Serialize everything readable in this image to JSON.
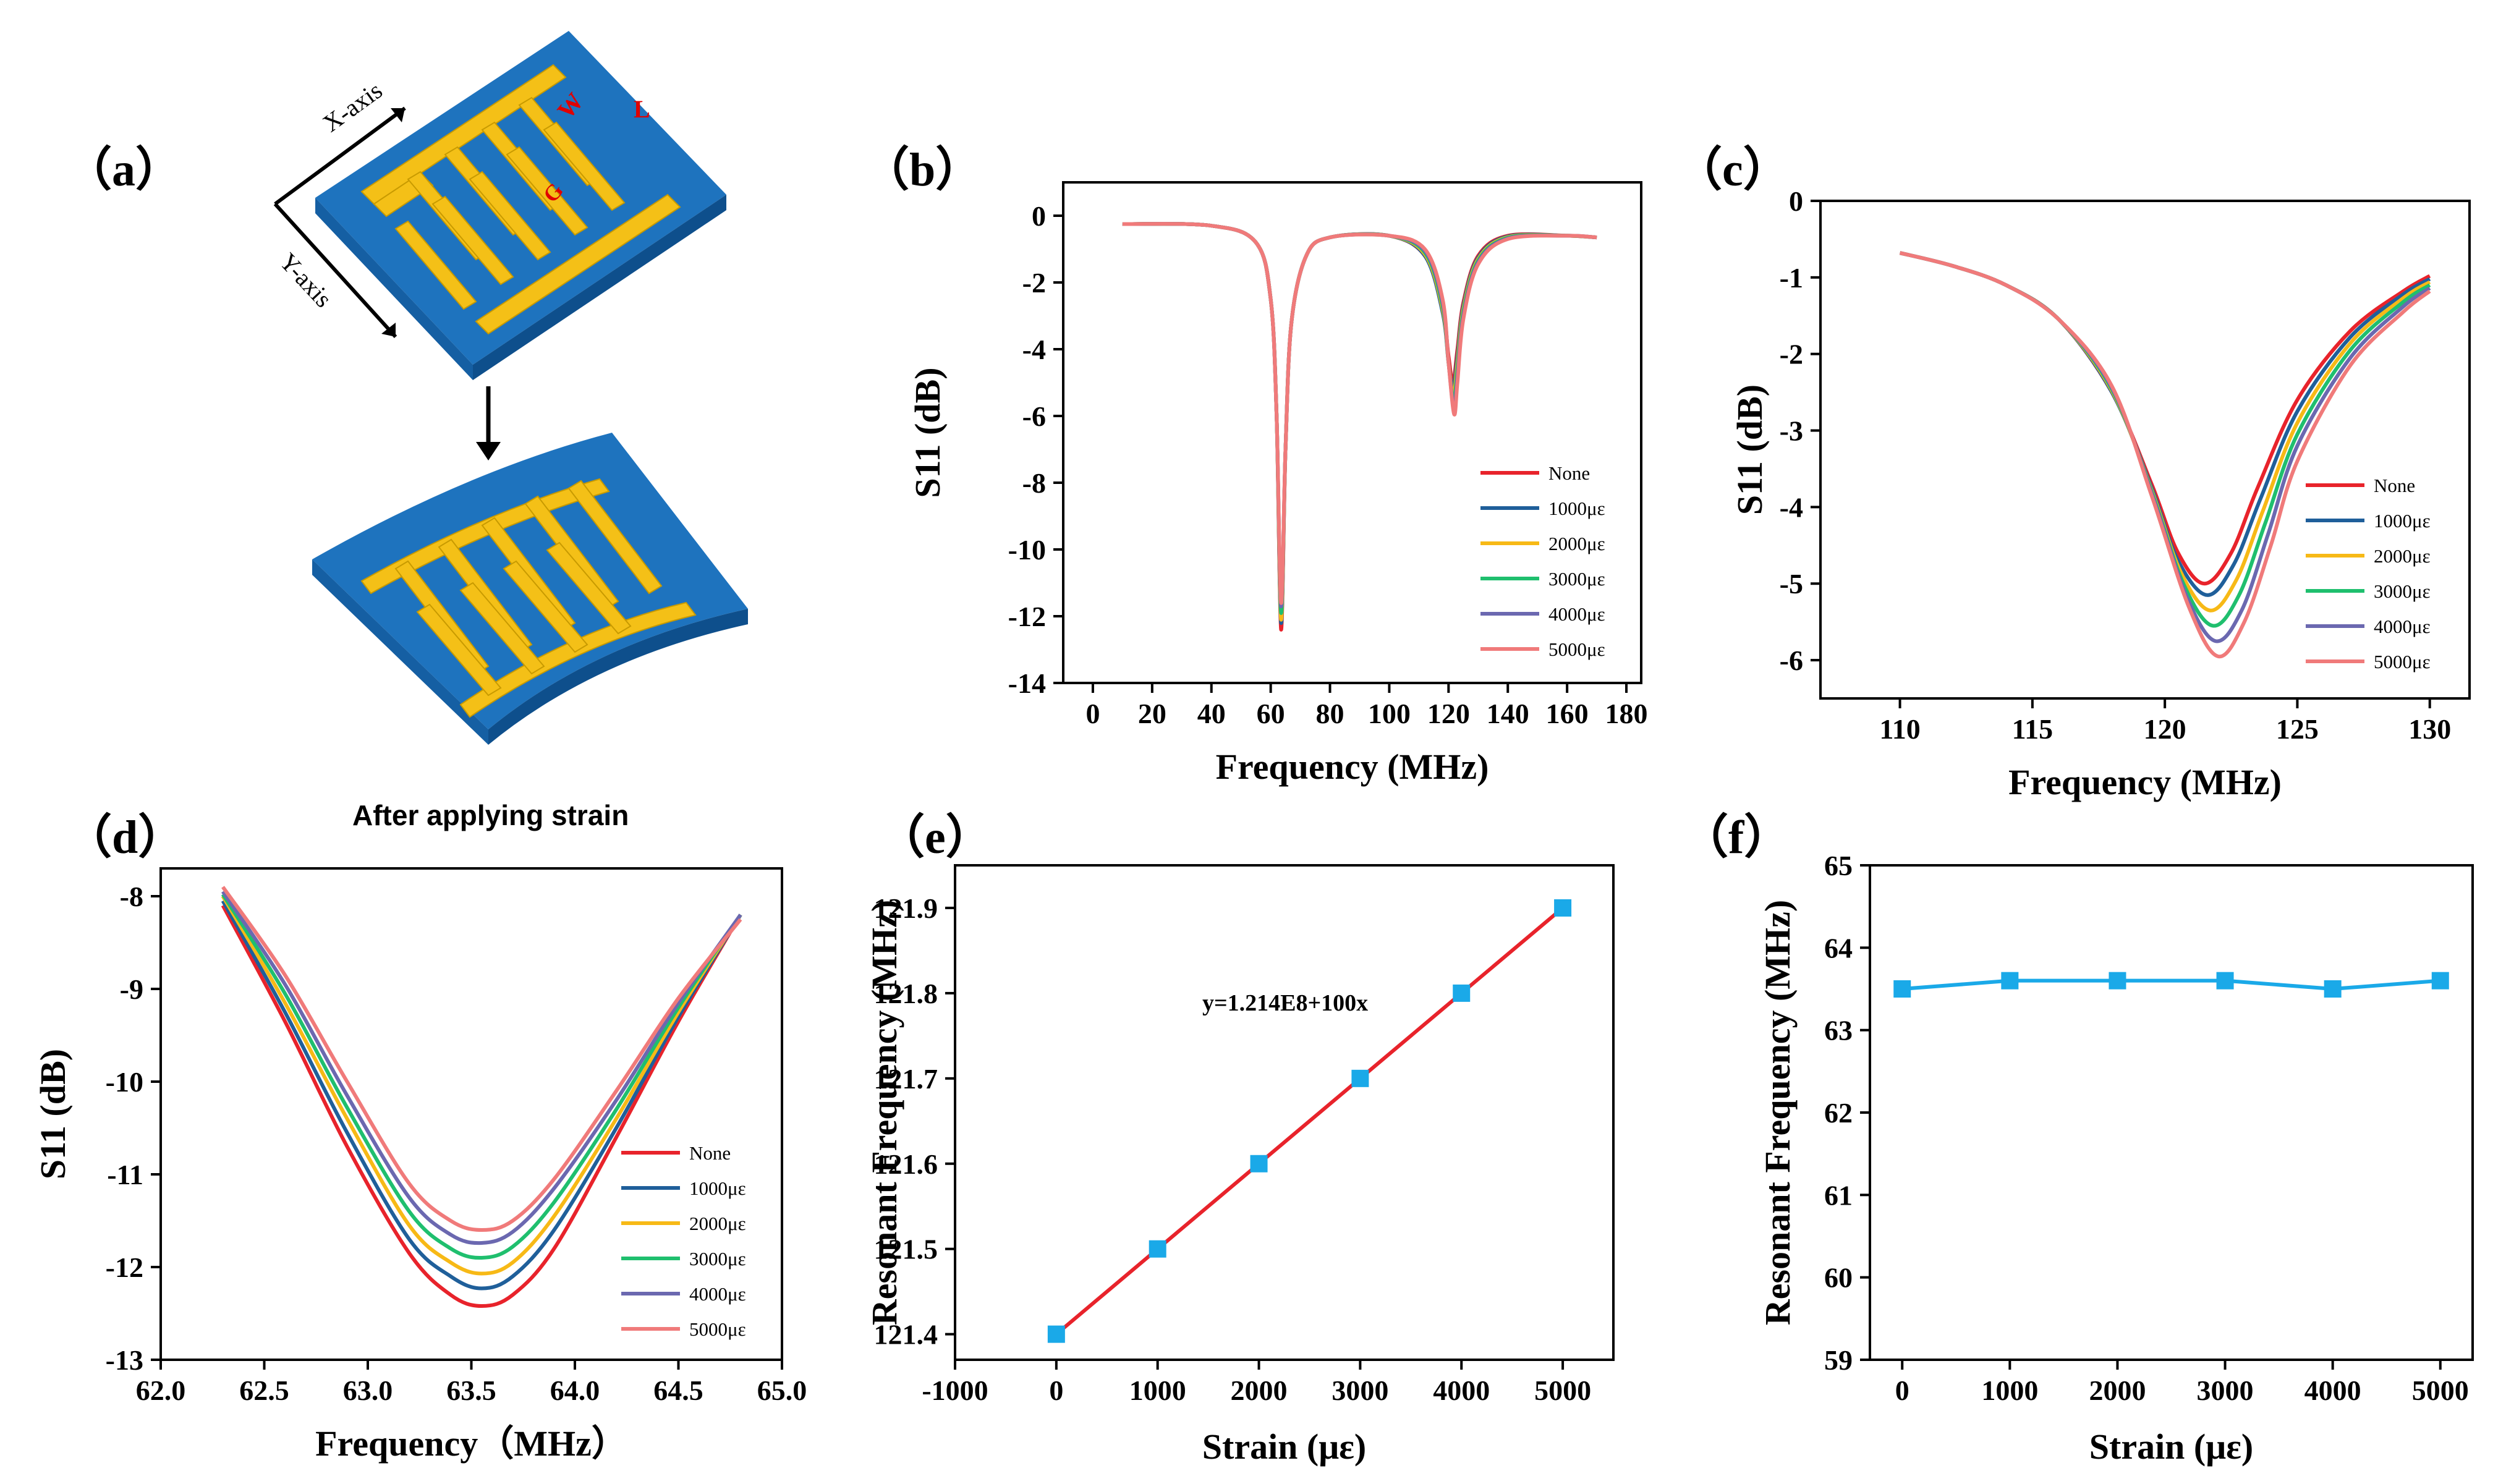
{
  "panels": {
    "a": {
      "label": "（a）",
      "x_axis": "X-axis",
      "y_axis": "Y-axis",
      "caption": "After applying strain",
      "marks": [
        "W",
        "L",
        "G"
      ]
    },
    "b": {
      "label": "（b）"
    },
    "c": {
      "label": "（c）"
    },
    "d": {
      "label": "（d）"
    },
    "e": {
      "label": "（e）",
      "annotation": "y=1.214E8+100x"
    },
    "f": {
      "label": "（f）"
    }
  },
  "colors": {
    "None": "#e8232b",
    "1000με": "#1f5f9a",
    "2000με": "#f7b916",
    "3000με": "#1fbf6e",
    "4000με": "#6b68b0",
    "5000με": "#f07a7a",
    "marker": "#1aa9e8",
    "fit": "#e8232b",
    "substrate": "#1e73be",
    "electrode": "#f4c017"
  },
  "chart_data": [
    {
      "id": "b",
      "type": "line",
      "xlabel": "Frequency (MHz)",
      "ylabel": "S11 (dB)",
      "xlim": [
        -10,
        185
      ],
      "ylim": [
        -14,
        1
      ],
      "xticks": [
        0,
        20,
        40,
        60,
        80,
        100,
        120,
        140,
        160,
        180
      ],
      "yticks": [
        0,
        -2,
        -4,
        -6,
        -8,
        -10,
        -12,
        -14
      ],
      "series": [
        {
          "name": "None",
          "x": [
            10,
            40,
            55,
            60,
            62,
            63.5,
            65,
            67,
            72,
            80,
            100,
            112,
            118,
            120,
            121.5,
            123,
            125,
            130,
            140,
            160,
            170
          ],
          "y": [
            -0.25,
            -0.3,
            -0.8,
            -2.5,
            -6,
            -12.4,
            -7,
            -3.2,
            -1.2,
            -0.65,
            -0.6,
            -1.2,
            -2.8,
            -4.2,
            -5.0,
            -4.0,
            -2.6,
            -1.2,
            -0.6,
            -0.6,
            -0.65
          ]
        },
        {
          "name": "1000με",
          "x": [
            10,
            40,
            55,
            60,
            62,
            63.5,
            65,
            67,
            72,
            80,
            100,
            112,
            118,
            120,
            121.5,
            123,
            125,
            130,
            140,
            160,
            170
          ],
          "y": [
            -0.25,
            -0.3,
            -0.8,
            -2.5,
            -6,
            -12.2,
            -7,
            -3.2,
            -1.2,
            -0.65,
            -0.6,
            -1.2,
            -2.9,
            -4.4,
            -5.2,
            -4.2,
            -2.7,
            -1.25,
            -0.62,
            -0.6,
            -0.65
          ]
        },
        {
          "name": "2000με",
          "x": [
            10,
            40,
            55,
            60,
            62,
            63.5,
            65,
            67,
            72,
            80,
            100,
            112,
            118,
            120,
            121.6,
            123,
            125,
            130,
            140,
            160,
            170
          ],
          "y": [
            -0.25,
            -0.3,
            -0.8,
            -2.5,
            -6,
            -12.1,
            -7,
            -3.2,
            -1.2,
            -0.65,
            -0.6,
            -1.15,
            -2.8,
            -4.4,
            -5.4,
            -4.4,
            -2.8,
            -1.3,
            -0.64,
            -0.6,
            -0.65
          ]
        },
        {
          "name": "3000με",
          "x": [
            10,
            40,
            55,
            60,
            62,
            63.5,
            65,
            67,
            72,
            80,
            100,
            112,
            118,
            120,
            121.7,
            123,
            125,
            130,
            140,
            160,
            170
          ],
          "y": [
            -0.25,
            -0.3,
            -0.8,
            -2.5,
            -6,
            -11.9,
            -7,
            -3.2,
            -1.2,
            -0.65,
            -0.6,
            -1.1,
            -2.7,
            -4.4,
            -5.6,
            -4.6,
            -2.9,
            -1.35,
            -0.66,
            -0.6,
            -0.65
          ]
        },
        {
          "name": "4000με",
          "x": [
            10,
            40,
            55,
            60,
            62,
            63.5,
            65,
            67,
            72,
            80,
            100,
            112,
            118,
            120,
            121.8,
            123,
            125,
            130,
            140,
            160,
            170
          ],
          "y": [
            -0.25,
            -0.3,
            -0.8,
            -2.5,
            -6,
            -11.7,
            -7,
            -3.2,
            -1.2,
            -0.65,
            -0.6,
            -1.05,
            -2.6,
            -4.4,
            -5.8,
            -4.8,
            -3.0,
            -1.4,
            -0.68,
            -0.6,
            -0.65
          ]
        },
        {
          "name": "5000με",
          "x": [
            10,
            40,
            55,
            60,
            62,
            63.5,
            65,
            67,
            72,
            80,
            100,
            112,
            118,
            120,
            121.9,
            123,
            125,
            130,
            140,
            160,
            170
          ],
          "y": [
            -0.25,
            -0.3,
            -0.8,
            -2.5,
            -6,
            -11.6,
            -7,
            -3.2,
            -1.2,
            -0.65,
            -0.6,
            -1.0,
            -2.5,
            -4.4,
            -5.95,
            -5.0,
            -3.1,
            -1.45,
            -0.7,
            -0.6,
            -0.65
          ]
        }
      ]
    },
    {
      "id": "c",
      "type": "line",
      "xlabel": "Frequency (MHz)",
      "ylabel": "S11 (dB)",
      "xlim": [
        107,
        131.5
      ],
      "ylim": [
        -6.5,
        0
      ],
      "xticks": [
        110,
        115,
        120,
        125,
        130
      ],
      "yticks": [
        0,
        -1,
        -2,
        -3,
        -4,
        -5,
        -6
      ],
      "series": [
        {
          "name": "None",
          "x": [
            110,
            112,
            114,
            116,
            118,
            119.5,
            120.5,
            121.5,
            122.5,
            123.5,
            125,
            127,
            129,
            130
          ],
          "y": [
            -0.68,
            -0.85,
            -1.1,
            -1.55,
            -2.5,
            -3.7,
            -4.6,
            -5.0,
            -4.6,
            -3.75,
            -2.6,
            -1.7,
            -1.18,
            -0.98
          ]
        },
        {
          "name": "1000με",
          "x": [
            110,
            112,
            114,
            116,
            118,
            119.5,
            120.5,
            121.6,
            122.6,
            123.6,
            125,
            127,
            129,
            130
          ],
          "y": [
            -0.68,
            -0.85,
            -1.1,
            -1.55,
            -2.5,
            -3.75,
            -4.7,
            -5.15,
            -4.75,
            -3.9,
            -2.75,
            -1.78,
            -1.22,
            -1.02
          ]
        },
        {
          "name": "2000με",
          "x": [
            110,
            112,
            114,
            116,
            118,
            119.5,
            120.6,
            121.7,
            122.7,
            123.7,
            125,
            127,
            129,
            130
          ],
          "y": [
            -0.68,
            -0.85,
            -1.1,
            -1.55,
            -2.48,
            -3.78,
            -4.85,
            -5.35,
            -4.95,
            -4.05,
            -2.9,
            -1.86,
            -1.27,
            -1.06
          ]
        },
        {
          "name": "3000με",
          "x": [
            110,
            112,
            114,
            116,
            118,
            119.5,
            120.7,
            121.8,
            122.8,
            123.8,
            125,
            127,
            129,
            130
          ],
          "y": [
            -0.68,
            -0.85,
            -1.1,
            -1.55,
            -2.46,
            -3.8,
            -5.0,
            -5.55,
            -5.15,
            -4.2,
            -3.05,
            -1.95,
            -1.32,
            -1.1
          ]
        },
        {
          "name": "4000με",
          "x": [
            110,
            112,
            114,
            116,
            118,
            119.5,
            120.8,
            121.9,
            122.9,
            123.9,
            125,
            127,
            129,
            130
          ],
          "y": [
            -0.68,
            -0.85,
            -1.1,
            -1.55,
            -2.44,
            -3.82,
            -5.15,
            -5.75,
            -5.35,
            -4.35,
            -3.2,
            -2.05,
            -1.38,
            -1.14
          ]
        },
        {
          "name": "5000με",
          "x": [
            110,
            112,
            114,
            116,
            118,
            119.5,
            120.9,
            122.0,
            123.0,
            124.0,
            125,
            127,
            129,
            130
          ],
          "y": [
            -0.68,
            -0.85,
            -1.1,
            -1.55,
            -2.42,
            -3.85,
            -5.3,
            -5.95,
            -5.5,
            -4.5,
            -3.4,
            -2.15,
            -1.45,
            -1.18
          ]
        }
      ]
    },
    {
      "id": "d",
      "type": "line",
      "xlabel": "Frequency（MHz）",
      "ylabel": "S11 (dB)",
      "xlim": [
        62.0,
        65.0
      ],
      "ylim": [
        -13,
        -7.7
      ],
      "xticks": [
        62.0,
        62.5,
        63.0,
        63.5,
        64.0,
        64.5,
        65.0
      ],
      "yticks": [
        -8,
        -9,
        -10,
        -11,
        -12,
        -13
      ],
      "series": [
        {
          "name": "None",
          "x": [
            62.3,
            62.6,
            62.9,
            63.2,
            63.4,
            63.55,
            63.7,
            63.9,
            64.2,
            64.5,
            64.8
          ],
          "y": [
            -8.1,
            -9.35,
            -10.7,
            -11.85,
            -12.3,
            -12.42,
            -12.3,
            -11.8,
            -10.6,
            -9.35,
            -8.2
          ]
        },
        {
          "name": "1000με",
          "x": [
            62.3,
            62.6,
            62.9,
            63.2,
            63.4,
            63.55,
            63.7,
            63.9,
            64.2,
            64.5,
            64.8
          ],
          "y": [
            -8.05,
            -9.25,
            -10.55,
            -11.7,
            -12.1,
            -12.23,
            -12.1,
            -11.6,
            -10.5,
            -9.3,
            -8.2
          ]
        },
        {
          "name": "2000με",
          "x": [
            62.3,
            62.6,
            62.9,
            63.2,
            63.4,
            63.55,
            63.7,
            63.9,
            64.2,
            64.5,
            64.8
          ],
          "y": [
            -8.0,
            -9.15,
            -10.4,
            -11.55,
            -11.95,
            -12.07,
            -11.95,
            -11.45,
            -10.4,
            -9.25,
            -8.2
          ]
        },
        {
          "name": "3000με",
          "x": [
            62.3,
            62.6,
            62.9,
            63.2,
            63.4,
            63.55,
            63.7,
            63.9,
            64.2,
            64.5,
            64.8
          ],
          "y": [
            -7.98,
            -9.05,
            -10.28,
            -11.4,
            -11.8,
            -11.9,
            -11.78,
            -11.3,
            -10.3,
            -9.2,
            -8.2
          ]
        },
        {
          "name": "4000με",
          "x": [
            62.3,
            62.6,
            62.9,
            63.2,
            63.4,
            63.55,
            63.7,
            63.9,
            64.2,
            64.5,
            64.8
          ],
          "y": [
            -7.95,
            -8.95,
            -10.15,
            -11.25,
            -11.65,
            -11.74,
            -11.62,
            -11.15,
            -10.2,
            -9.15,
            -8.2
          ]
        },
        {
          "name": "5000με",
          "x": [
            62.3,
            62.6,
            62.9,
            63.2,
            63.4,
            63.55,
            63.7,
            63.9,
            64.2,
            64.5,
            64.8
          ],
          "y": [
            -7.9,
            -8.85,
            -10.0,
            -11.1,
            -11.5,
            -11.6,
            -11.5,
            -11.05,
            -10.1,
            -9.1,
            -8.25
          ]
        }
      ]
    },
    {
      "id": "e",
      "type": "scatter",
      "xlabel": "Strain (με)",
      "ylabel": "Resonant Frequency (MHz)",
      "xlim": [
        -1000,
        5500
      ],
      "ylim": [
        121.37,
        121.95
      ],
      "xticks": [
        -1000,
        0,
        1000,
        2000,
        3000,
        4000,
        5000
      ],
      "yticks": [
        121.4,
        121.5,
        121.6,
        121.7,
        121.8,
        121.9
      ],
      "x": [
        0,
        1000,
        2000,
        3000,
        4000,
        5000
      ],
      "y": [
        121.4,
        121.5,
        121.6,
        121.7,
        121.8,
        121.9
      ],
      "fit": {
        "x": [
          0,
          5000
        ],
        "y": [
          121.4,
          121.9
        ]
      }
    },
    {
      "id": "f",
      "type": "line",
      "xlabel": "Strain (με)",
      "ylabel": "Resonant Frequency (MHz)",
      "xlim": [
        -300,
        5300
      ],
      "ylim": [
        59,
        65
      ],
      "xticks": [
        0,
        1000,
        2000,
        3000,
        4000,
        5000
      ],
      "yticks": [
        59,
        60,
        61,
        62,
        63,
        64,
        65
      ],
      "x": [
        0,
        1000,
        2000,
        3000,
        4000,
        5000
      ],
      "y": [
        63.5,
        63.6,
        63.6,
        63.6,
        63.5,
        63.6
      ]
    }
  ]
}
